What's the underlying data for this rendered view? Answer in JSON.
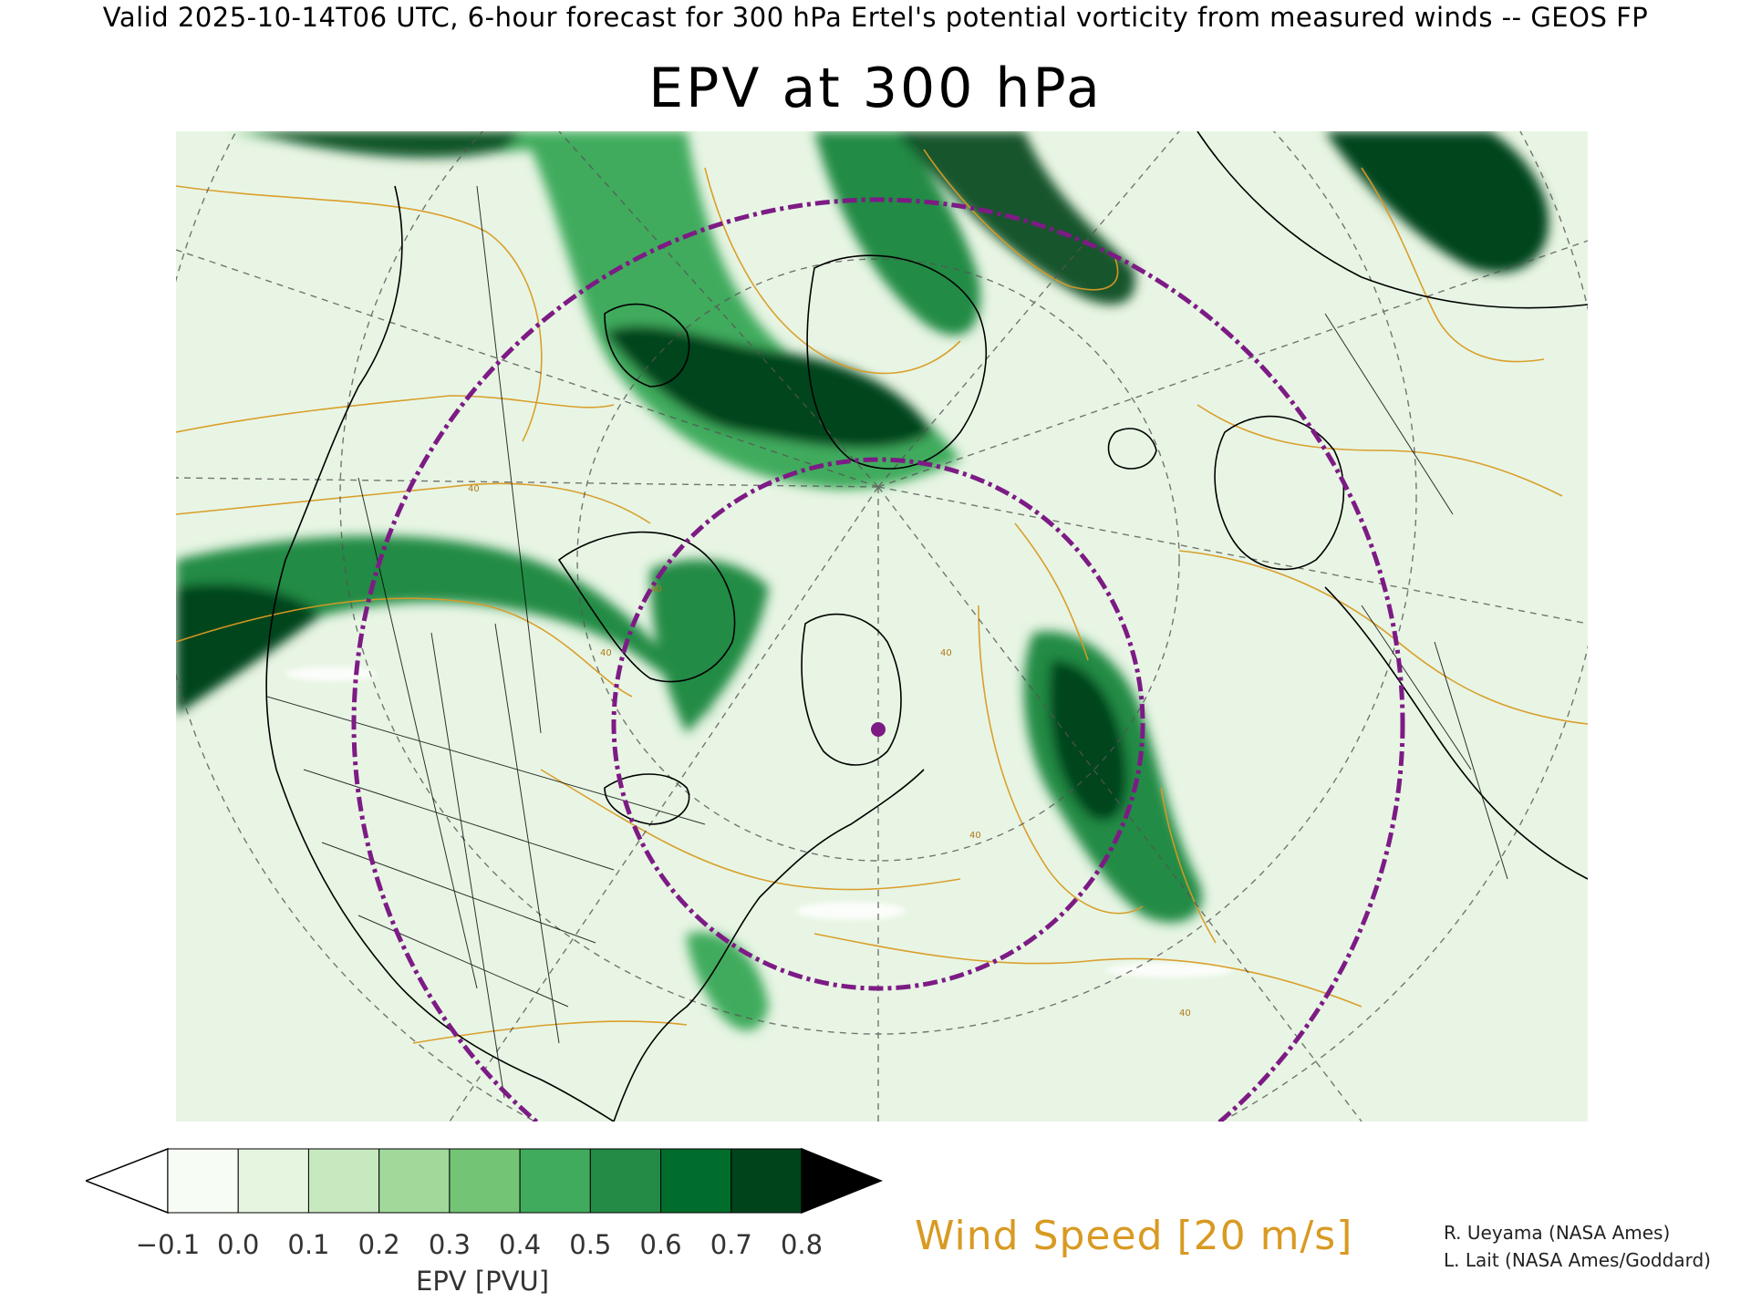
{
  "header": {
    "valid_line": "Valid 2025-10-14T06 UTC, 6-hour forecast for 300 hPa Ertel's potential vorticity from measured winds -- GEOS FP",
    "title": "EPV at 300 hPa"
  },
  "colorbar": {
    "label": "EPV [PVU]",
    "ticks": [
      "−0.1",
      "0.0",
      "0.1",
      "0.2",
      "0.3",
      "0.4",
      "0.5",
      "0.6",
      "0.7",
      "0.8"
    ],
    "colors": [
      "#f7fcf5",
      "#e5f5e0",
      "#c7e9c0",
      "#a1d99b",
      "#74c476",
      "#41ab5d",
      "#238b45",
      "#006d2c",
      "#00441b"
    ],
    "under_color": "#ffffff",
    "over_color": "#000000"
  },
  "wind_legend": {
    "label": "Wind Speed [20 m/s]",
    "color": "#d99a22"
  },
  "credits": {
    "line1": "R. Ueyama (NASA Ames)",
    "line2": "L. Lait (NASA Ames/Goddard)"
  },
  "map": {
    "background_color": "#e8f5e4",
    "contour_color": "#d99a22",
    "range_ring_color": "#7d1b85",
    "marker_color": "#7d1b85",
    "contour_labels": [
      "40",
      "40",
      "40",
      "40",
      "40",
      "40"
    ]
  }
}
